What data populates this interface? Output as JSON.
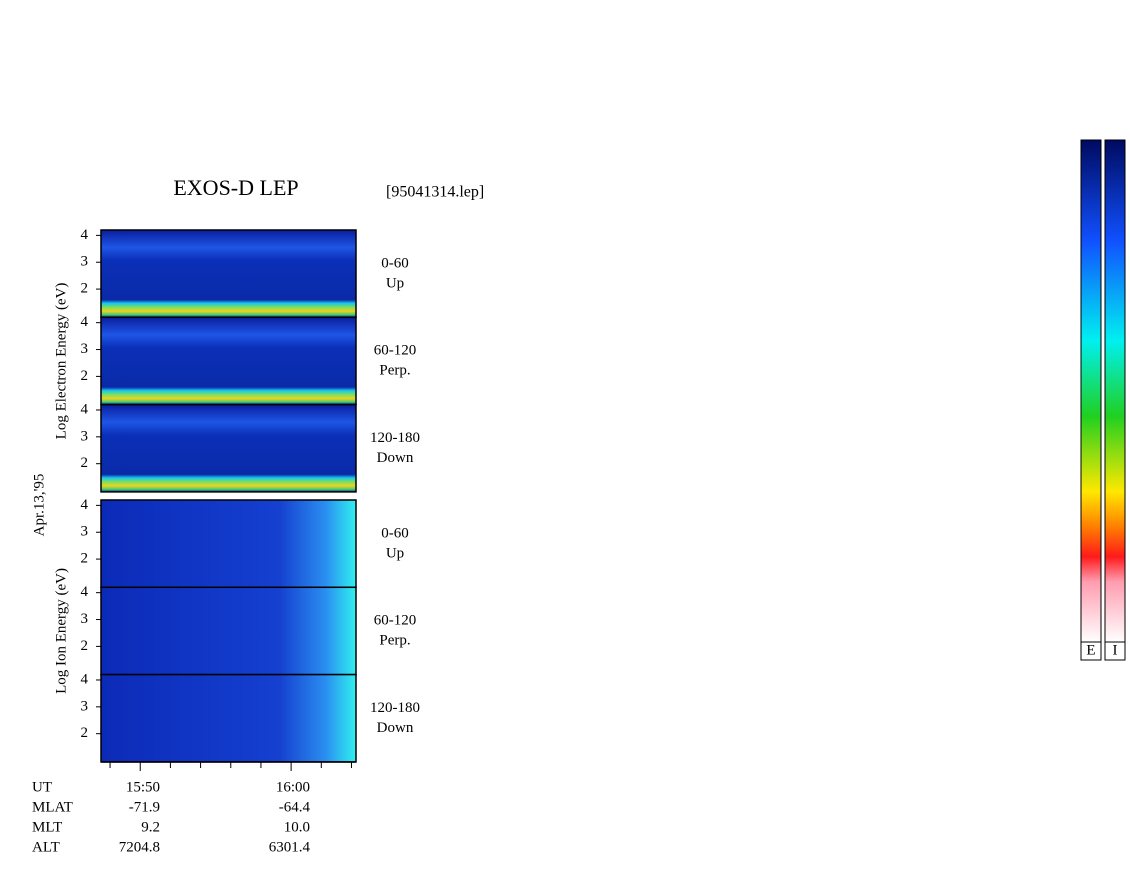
{
  "chart_data": {
    "type": "spectrogram",
    "title": "EXOS-D LEP",
    "file": "[95041314.lep]",
    "date_label": "Apr.13,'95",
    "ylim": [
      0.95,
      4.2
    ],
    "yticks": [
      2,
      3,
      4
    ],
    "xlim": [
      947.4,
      964.3
    ],
    "xticks": [
      {
        "value": 950,
        "label": "15:50"
      },
      {
        "value": 960,
        "label": "16:00"
      }
    ],
    "minor_xticks": [
      948,
      952,
      954,
      956,
      958,
      962,
      964
    ],
    "groups": [
      {
        "axis_label": "Log Electron Energy (eV)",
        "panels": [
          {
            "angle": "0-60",
            "direction": "Up"
          },
          {
            "angle": "60-120",
            "direction": "Perp."
          },
          {
            "angle": "120-180",
            "direction": "Down"
          }
        ]
      },
      {
        "axis_label": "Log Ion Energy (eV)",
        "panels": [
          {
            "angle": "0-60",
            "direction": "Up"
          },
          {
            "angle": "60-120",
            "direction": "Perp."
          },
          {
            "angle": "120-180",
            "direction": "Down"
          }
        ]
      }
    ],
    "orbit": {
      "labels": [
        "UT",
        "MLAT",
        "MLT",
        "ALT"
      ],
      "rows": [
        [
          null,
          null
        ],
        [
          "-71.9",
          "-64.4"
        ],
        [
          "9.2",
          "10.0"
        ],
        [
          "7204.8",
          "6301.4"
        ]
      ]
    },
    "colorbars": [
      "E",
      "I"
    ]
  }
}
